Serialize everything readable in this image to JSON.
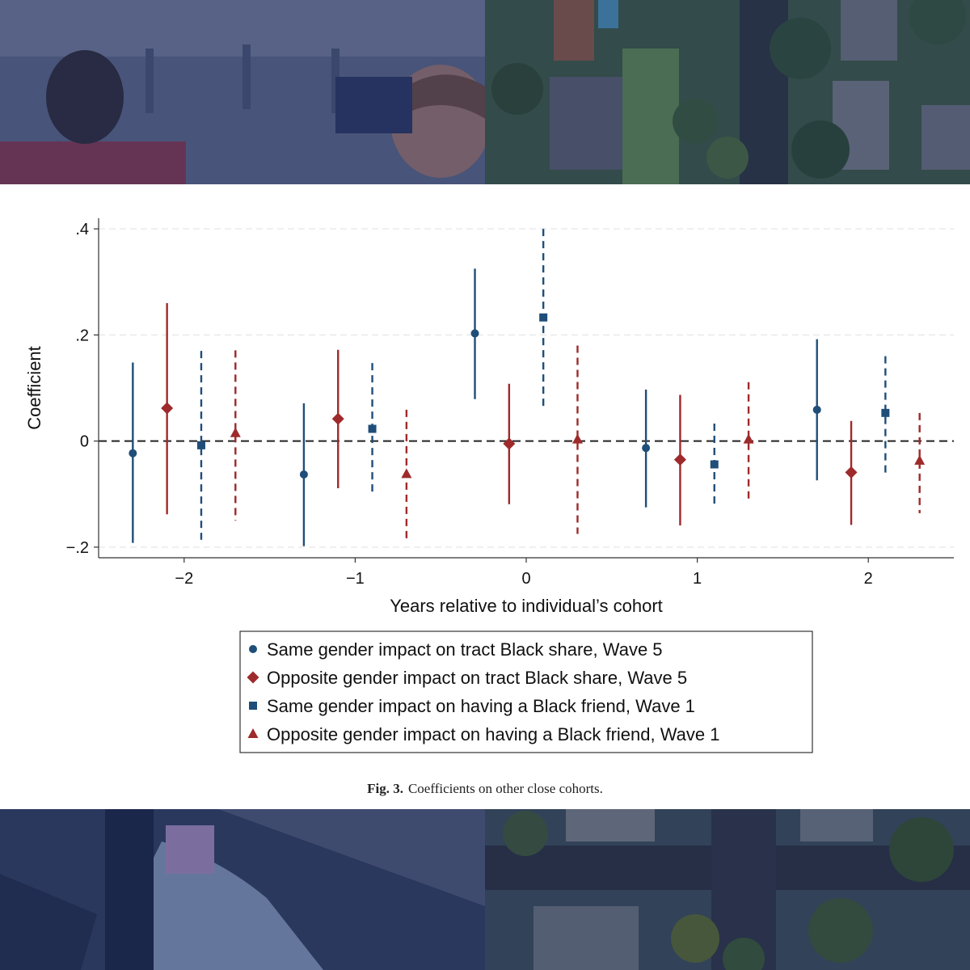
{
  "figure": {
    "caption_label": "Fig. 3.",
    "caption_text": "Coefficients on other close cohorts."
  },
  "chart_data": {
    "type": "scatter",
    "subtype": "coefficient plot with confidence intervals",
    "xlabel": "Years relative to individual’s cohort",
    "ylabel": "Coefficient",
    "xlim": [
      -2.5,
      2.5
    ],
    "ylim": [
      -0.22,
      0.42
    ],
    "x_ticks": [
      -2,
      -1,
      0,
      1,
      2
    ],
    "x_tick_labels": [
      "−2",
      "−1",
      "0",
      "1",
      "2"
    ],
    "y_ticks": [
      -0.2,
      0,
      0.2,
      0.4
    ],
    "y_tick_labels": [
      "−.2",
      "0",
      ".2",
      ".4"
    ],
    "grid": true,
    "reference_line": 0,
    "legend_position": "bottom",
    "series": [
      {
        "name": "Same gender impact on tract Black share, Wave 5",
        "marker": "circle",
        "color": "#1f4e79",
        "line": "solid",
        "points": [
          {
            "x": -2,
            "y": -0.023,
            "lo": -0.192,
            "hi": 0.148
          },
          {
            "x": -1,
            "y": -0.063,
            "lo": -0.198,
            "hi": 0.071
          },
          {
            "x": 0,
            "y": 0.203,
            "lo": 0.079,
            "hi": 0.325
          },
          {
            "x": 1,
            "y": -0.013,
            "lo": -0.125,
            "hi": 0.097
          },
          {
            "x": 2,
            "y": 0.059,
            "lo": -0.074,
            "hi": 0.192
          }
        ]
      },
      {
        "name": "Opposite gender impact on tract Black share, Wave 5",
        "marker": "diamond",
        "color": "#9e2a2b",
        "line": "solid",
        "points": [
          {
            "x": -2,
            "y": 0.062,
            "lo": -0.138,
            "hi": 0.26
          },
          {
            "x": -1,
            "y": 0.042,
            "lo": -0.089,
            "hi": 0.172
          },
          {
            "x": 0,
            "y": -0.005,
            "lo": -0.119,
            "hi": 0.108
          },
          {
            "x": 1,
            "y": -0.035,
            "lo": -0.159,
            "hi": 0.087
          },
          {
            "x": 2,
            "y": -0.059,
            "lo": -0.158,
            "hi": 0.038
          }
        ]
      },
      {
        "name": "Same gender impact on having a Black friend, Wave 1",
        "marker": "square",
        "color": "#1f4e79",
        "line": "dashed",
        "points": [
          {
            "x": -2,
            "y": -0.008,
            "lo": -0.186,
            "hi": 0.17
          },
          {
            "x": -1,
            "y": 0.023,
            "lo": -0.101,
            "hi": 0.147
          },
          {
            "x": 0,
            "y": 0.233,
            "lo": 0.066,
            "hi": 0.4
          },
          {
            "x": 1,
            "y": -0.044,
            "lo": -0.122,
            "hi": 0.033
          },
          {
            "x": 2,
            "y": 0.053,
            "lo": -0.061,
            "hi": 0.16
          }
        ]
      },
      {
        "name": "Opposite gender impact on having a Black friend, Wave 1",
        "marker": "triangle",
        "color": "#9e2a2b",
        "line": "dashed",
        "points": [
          {
            "x": -2,
            "y": 0.015,
            "lo": -0.15,
            "hi": 0.171
          },
          {
            "x": -1,
            "y": -0.062,
            "lo": -0.185,
            "hi": 0.059
          },
          {
            "x": 0,
            "y": 0.003,
            "lo": -0.175,
            "hi": 0.18
          },
          {
            "x": 1,
            "y": 0.003,
            "lo": -0.11,
            "hi": 0.111
          },
          {
            "x": 2,
            "y": -0.037,
            "lo": -0.136,
            "hi": 0.053
          }
        ]
      }
    ]
  }
}
